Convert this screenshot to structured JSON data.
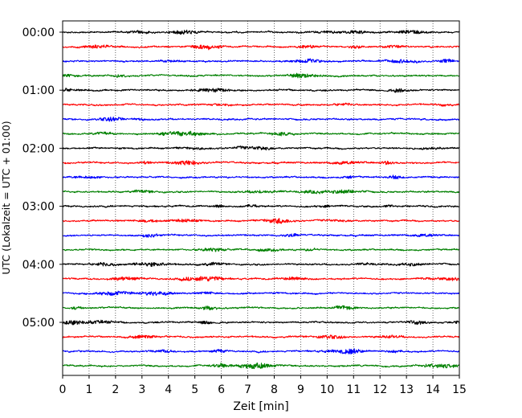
{
  "chart_data": {
    "type": "line",
    "title": "",
    "xlabel": "Zeit  [min]",
    "ylabel": "UTC (Lokalzeit = UTC + 01:00)",
    "xlim": [
      0,
      15
    ],
    "x_ticks": [
      0,
      1,
      2,
      3,
      4,
      5,
      6,
      7,
      8,
      9,
      10,
      11,
      12,
      13,
      14,
      15
    ],
    "x_tick_labels": [
      "0",
      "1",
      "2",
      "3",
      "4",
      "5",
      "6",
      "7",
      "8",
      "9",
      "10",
      "11",
      "12",
      "13",
      "14",
      "15"
    ],
    "y_tick_labels": [
      "00:00",
      "01:00",
      "02:00",
      "03:00",
      "04:00",
      "05:00"
    ],
    "grid": "vertical dotted lines at each minute",
    "trace_interval_minutes": 15,
    "trace_colors": [
      "#000000",
      "#ff0000",
      "#0000ff",
      "#008000"
    ],
    "traces": [
      {
        "start": "00:00",
        "color": "#000000"
      },
      {
        "start": "00:15",
        "color": "#ff0000"
      },
      {
        "start": "00:30",
        "color": "#0000ff"
      },
      {
        "start": "00:45",
        "color": "#008000"
      },
      {
        "start": "01:00",
        "color": "#000000"
      },
      {
        "start": "01:15",
        "color": "#ff0000"
      },
      {
        "start": "01:30",
        "color": "#0000ff"
      },
      {
        "start": "01:45",
        "color": "#008000"
      },
      {
        "start": "02:00",
        "color": "#000000"
      },
      {
        "start": "02:15",
        "color": "#ff0000"
      },
      {
        "start": "02:30",
        "color": "#0000ff"
      },
      {
        "start": "02:45",
        "color": "#008000"
      },
      {
        "start": "03:00",
        "color": "#000000"
      },
      {
        "start": "03:15",
        "color": "#ff0000"
      },
      {
        "start": "03:30",
        "color": "#0000ff"
      },
      {
        "start": "03:45",
        "color": "#008000"
      },
      {
        "start": "04:00",
        "color": "#000000"
      },
      {
        "start": "04:15",
        "color": "#ff0000"
      },
      {
        "start": "04:30",
        "color": "#0000ff"
      },
      {
        "start": "04:45",
        "color": "#008000"
      },
      {
        "start": "05:00",
        "color": "#000000"
      },
      {
        "start": "05:15",
        "color": "#ff0000"
      },
      {
        "start": "05:30",
        "color": "#0000ff"
      },
      {
        "start": "05:45",
        "color": "#008000"
      }
    ]
  }
}
